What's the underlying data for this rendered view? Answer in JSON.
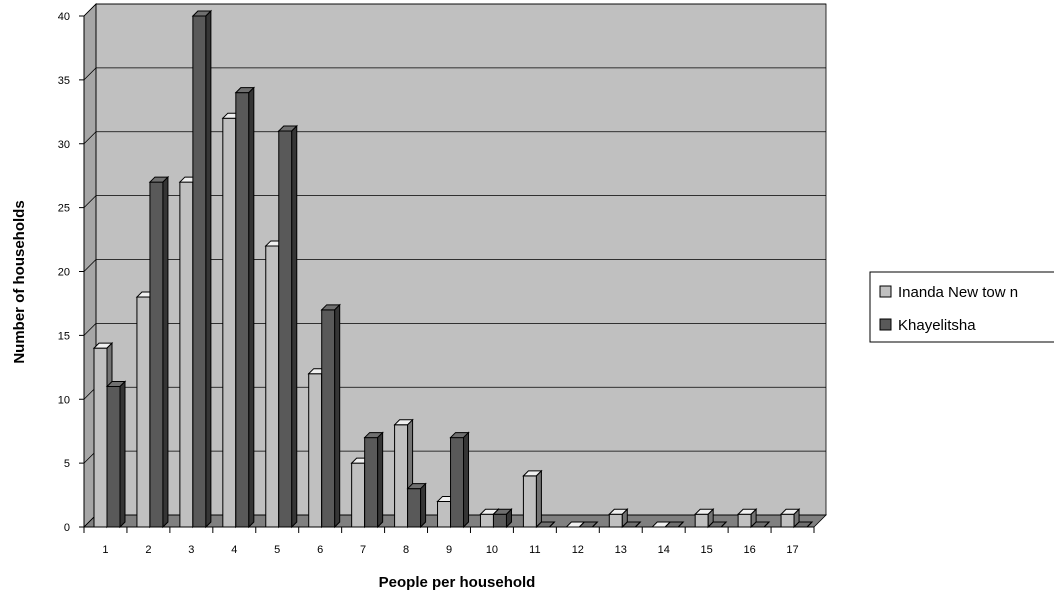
{
  "chart_data": {
    "type": "bar",
    "title": "",
    "xlabel": "People per household",
    "ylabel": "Number of households",
    "ylim": [
      0,
      40
    ],
    "yticks": [
      0,
      5,
      10,
      15,
      20,
      25,
      30,
      35,
      40
    ],
    "categories": [
      "1",
      "2",
      "3",
      "4",
      "5",
      "6",
      "7",
      "8",
      "9",
      "10",
      "11",
      "12",
      "13",
      "14",
      "15",
      "16",
      "17"
    ],
    "series": [
      {
        "name": "Inanda New tow n",
        "color": "#c0c0c0",
        "values": [
          14,
          18,
          27,
          32,
          22,
          12,
          5,
          8,
          2,
          1,
          4,
          0,
          1,
          0,
          1,
          1,
          1
        ]
      },
      {
        "name": "Khayelitsha",
        "color": "#595959",
        "values": [
          11,
          27,
          40,
          34,
          31,
          17,
          7,
          3,
          7,
          1,
          0,
          0,
          0,
          0,
          0,
          0,
          0
        ]
      }
    ],
    "grid": true,
    "legend_position": "right",
    "plot_background": "#c0c0c0",
    "style": "3d-clustered-column"
  }
}
